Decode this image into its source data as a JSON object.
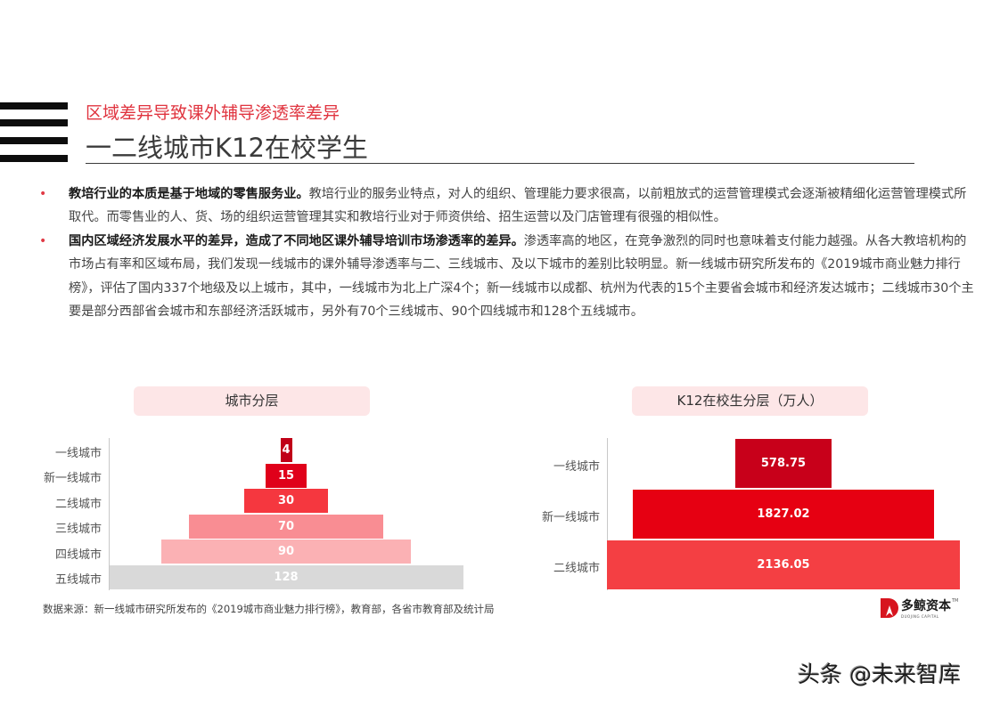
{
  "header": {
    "subtitle": "区域差异导致课外辅导渗透率差异",
    "title": "一二线城市K12在校学生"
  },
  "bullets": [
    {
      "bold": "教培行业的本质是基于地域的零售服务业。",
      "text": "教培行业的服务业特点，对人的组织、管理能力要求很高，以前粗放式的运营管理模式会逐渐被精细化运营管理模式所取代。而零售业的人、货、场的组织运营管理其实和教培行业对于师资供给、招生运营以及门店管理有很强的相似性。"
    },
    {
      "bold": "国内区域经济发展水平的差异，造成了不同地区课外辅导培训市场渗透率的差异。",
      "text": "渗透率高的地区，在竞争激烈的同时也意味着支付能力越强。从各大教培机构的市场占有率和区域布局，我们发现一线城市的课外辅导渗透率与二、三线城市、及以下城市的差别比较明显。新一线城市研究所发布的《2019城市商业魅力排行榜》，评估了国内337个地级及以上城市，其中，一线城市为北上广深4个；新一线城市以成都、杭州为代表的15个主要省会城市和经济发达城市；二线城市30个主要是部分西部省会城市和东部经济活跃城市，另外有70个三线城市、90个四线城市和128个五线城市。"
    }
  ],
  "chart_data": [
    {
      "type": "bar",
      "orientation": "horizontal-centered (funnel/pyramid)",
      "title": "城市分层",
      "categories": [
        "一线城市",
        "新一线城市",
        "二线城市",
        "三线城市",
        "四线城市",
        "五线城市"
      ],
      "values": [
        4,
        15,
        30,
        70,
        90,
        128
      ],
      "labels": [
        "4",
        "15",
        "30",
        "70",
        "90",
        "128"
      ],
      "colors": [
        "#c00018",
        "#e0001a",
        "#f5373f",
        "#f98d93",
        "#fbb1b4",
        "#d9d9d9"
      ],
      "xlabel": "",
      "ylabel": "",
      "grid": false,
      "legend": "none"
    },
    {
      "type": "bar",
      "orientation": "horizontal-centered (funnel/pyramid)",
      "title": "K12在校生分层（万人）",
      "categories": [
        "一线城市",
        "新一线城市",
        "二线城市"
      ],
      "values": [
        578.75,
        1827.02,
        2136.05
      ],
      "labels": [
        "578.75",
        "1827.02",
        "2136.05"
      ],
      "colors": [
        "#c8001a",
        "#e60012",
        "#f43f43"
      ],
      "xlabel": "",
      "ylabel": "",
      "grid": false,
      "legend": "none"
    }
  ],
  "source": "数据来源：新一线城市研究所发布的《2019城市商业魅力排行榜》，教育部，各省市教育部及统计局",
  "logo": {
    "name": "多鲸资本",
    "sub": "DUOJING CAPITAL",
    "tm": "TM"
  },
  "watermark": "头条 @未来智库"
}
